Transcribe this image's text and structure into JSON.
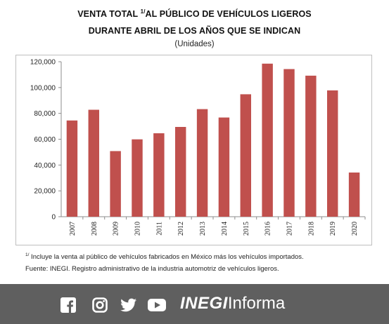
{
  "header": {
    "title_line1_pre": "VENTA TOTAL ",
    "title_line1_sup": "1/",
    "title_line1_post": "AL PÚBLICO DE VEHÍCULOS LIGEROS",
    "title_line2": "DURANTE ABRIL DE LOS AÑOS QUE SE INDICAN",
    "subtitle": "(Unidades)"
  },
  "chart_data": {
    "type": "bar",
    "categories": [
      "2007",
      "2008",
      "2009",
      "2010",
      "2011",
      "2012",
      "2013",
      "2014",
      "2015",
      "2016",
      "2017",
      "2018",
      "2019",
      "2020"
    ],
    "values": [
      74500,
      82800,
      50800,
      59900,
      64600,
      69500,
      83300,
      76800,
      94800,
      118500,
      114300,
      109200,
      97800,
      34200
    ],
    "ylim": [
      0,
      120000
    ],
    "yticks": [
      0,
      20000,
      40000,
      60000,
      80000,
      100000,
      120000
    ],
    "ytick_labels": [
      "0",
      "20,000",
      "40,000",
      "60,000",
      "80,000",
      "100,000",
      "120,000"
    ],
    "bar_color": "#c0504d",
    "grid": false,
    "legend": "none"
  },
  "footnotes": {
    "note_sup": "1/",
    "note_text": " Incluye la venta al público de vehículos fabricados en México más los vehículos importados.",
    "source": "Fuente: INEGI. Registro administrativo de la industria automotriz de vehículos ligeros."
  },
  "footer": {
    "background": "#5f5f5f",
    "icons": [
      "facebook-icon",
      "instagram-icon",
      "twitter-icon",
      "youtube-icon"
    ],
    "brand_bold": "INEGI",
    "brand_regular": "Informa"
  }
}
